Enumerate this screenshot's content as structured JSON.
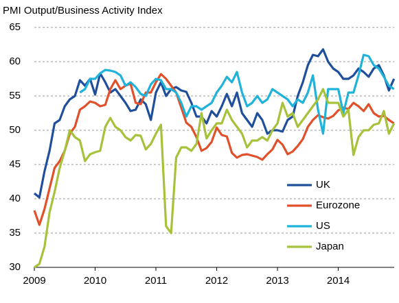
{
  "chart_data": {
    "type": "line",
    "title": "PMI Output/Business Activity Index",
    "x": [
      2009,
      2009.083,
      2009.167,
      2009.25,
      2009.333,
      2009.417,
      2009.5,
      2009.583,
      2009.667,
      2009.75,
      2009.833,
      2009.917,
      2010,
      2010.083,
      2010.167,
      2010.25,
      2010.333,
      2010.417,
      2010.5,
      2010.583,
      2010.667,
      2010.75,
      2010.833,
      2010.917,
      2011,
      2011.083,
      2011.167,
      2011.25,
      2011.333,
      2011.417,
      2011.5,
      2011.583,
      2011.667,
      2011.75,
      2011.833,
      2011.917,
      2012,
      2012.083,
      2012.167,
      2012.25,
      2012.333,
      2012.417,
      2012.5,
      2012.583,
      2012.667,
      2012.75,
      2012.833,
      2012.917,
      2013,
      2013.083,
      2013.167,
      2013.25,
      2013.333,
      2013.417,
      2013.5,
      2013.583,
      2013.667,
      2013.75,
      2013.833,
      2013.917,
      2014,
      2014.083,
      2014.167,
      2014.25,
      2014.333,
      2014.417,
      2014.5,
      2014.583,
      2014.667,
      2014.75,
      2014.833,
      2014.917
    ],
    "series": [
      {
        "name": "UK",
        "color": "#1f4e9b",
        "values": [
          40.8,
          40.2,
          44,
          47,
          51,
          51.5,
          53.5,
          54.5,
          55,
          57.3,
          56.5,
          57.5,
          55.2,
          58.3,
          57,
          55.5,
          56,
          55,
          54,
          52.8,
          53,
          54.5,
          53.8,
          51.5,
          55.5,
          57,
          55,
          56,
          56.3,
          55.8,
          55.6,
          54,
          52,
          52,
          51,
          52.8,
          52,
          53.5,
          55.3,
          53.5,
          55.5,
          52.5,
          51.5,
          50.5,
          52.5,
          51.5,
          49.5,
          50,
          50,
          49.8,
          51.5,
          52,
          55,
          57,
          59.5,
          61,
          60.8,
          61.8,
          60,
          59,
          58.5,
          57.5,
          57.5,
          58,
          59,
          58.5,
          57.8,
          59,
          59.5,
          58,
          55.8,
          57.5
        ]
      },
      {
        "name": "Eurozone",
        "color": "#e0502a",
        "values": [
          38.3,
          36.2,
          38.5,
          41.5,
          44.5,
          45.5,
          47,
          49.5,
          50.5,
          53,
          53.5,
          54.2,
          54,
          53.5,
          53.7,
          56,
          57.3,
          56,
          56.5,
          56.8,
          54,
          53.8,
          55.5,
          55.5,
          57,
          58.2,
          57.5,
          56.5,
          55.5,
          53.3,
          51.1,
          50.5,
          49,
          47,
          47.4,
          48.3,
          50.4,
          49.3,
          49.1,
          46.7,
          46,
          46.4,
          46.5,
          46.3,
          46.1,
          45.7,
          46.5,
          47.2,
          48.6,
          47.9,
          46.5,
          46.9,
          47.7,
          48.7,
          50.5,
          51.5,
          52.2,
          51.9,
          51.7,
          52.1,
          52.9,
          53.3,
          53.1,
          54,
          53.5,
          52.8,
          53.8,
          52.5,
          52,
          52.1,
          51.5,
          51
        ]
      },
      {
        "name": "US",
        "color": "#1fb3d9",
        "values": [
          null,
          null,
          null,
          null,
          null,
          null,
          null,
          null,
          null,
          55.5,
          56,
          57.5,
          57.5,
          58.3,
          58.8,
          58.7,
          58.5,
          58,
          56.5,
          57,
          56.3,
          55.3,
          55,
          56.7,
          57.5,
          57.3,
          56,
          56,
          55.5,
          54,
          52,
          53.5,
          53.5,
          53,
          53.5,
          54,
          55.5,
          56.5,
          57.8,
          57,
          58.5,
          55.5,
          53.5,
          54,
          55,
          54,
          54.5,
          56,
          55.5,
          55,
          54.5,
          53.5,
          54.5,
          54,
          55.5,
          58,
          53,
          49.5,
          56,
          56,
          56,
          52.5,
          55.5,
          55.5,
          58,
          61,
          60.8,
          59.5,
          59,
          57.8,
          56.5,
          56
        ]
      },
      {
        "name": "Japan",
        "color": "#a6c13a",
        "values": [
          30,
          30.5,
          33,
          38,
          41,
          44.5,
          47,
          50,
          49,
          48.5,
          45.5,
          46.5,
          46.8,
          47,
          50.5,
          51.8,
          50.5,
          50,
          49,
          48.5,
          49.3,
          49.2,
          47.2,
          48,
          49.5,
          50.8,
          36,
          35,
          46,
          47.5,
          47.5,
          47,
          48,
          52.5,
          48.8,
          50,
          51,
          51,
          53,
          51.5,
          50.5,
          49.5,
          47.5,
          48.5,
          48.5,
          49,
          48.5,
          50,
          51,
          54,
          52,
          52.5,
          50.5,
          51.5,
          52.5,
          53.5,
          54.5,
          56,
          54,
          54,
          54,
          52,
          53,
          46.4,
          49,
          50,
          50,
          50.8,
          51,
          52.8,
          49.5,
          51
        ]
      }
    ],
    "xlim": [
      2009,
      2014.92
    ],
    "xticks": [
      2009,
      2010,
      2011,
      2012,
      2013,
      2014
    ],
    "ylim": [
      30,
      65
    ],
    "yticks": [
      30,
      35,
      40,
      45,
      50,
      55,
      60,
      65
    ],
    "grid": true,
    "legend": "lower right"
  }
}
